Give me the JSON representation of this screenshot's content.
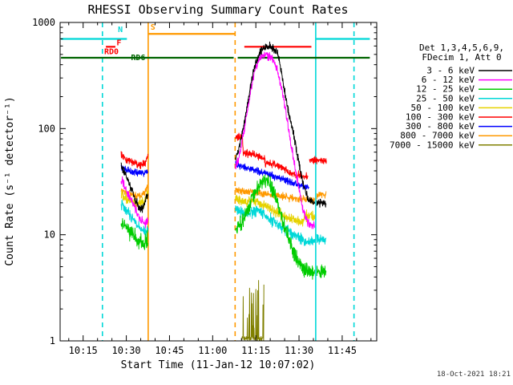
{
  "timestamp": "18-Oct-2021 18:21",
  "chart_data": {
    "type": "line",
    "title": "RHESSI Observing Summary Count Rates",
    "xlabel": "Start Time (11-Jan-12 10:07:02)",
    "ylabel": "Count Rate (s⁻¹ detector⁻¹)",
    "x_unit": "minutes after 10:00",
    "xlim": [
      7,
      117
    ],
    "ylim": [
      1,
      1000
    ],
    "yscale": "log",
    "grid": false,
    "x_ticks": [
      {
        "t": 15,
        "label": "10:15"
      },
      {
        "t": 30,
        "label": "10:30"
      },
      {
        "t": 45,
        "label": "10:45"
      },
      {
        "t": 60,
        "label": "11:00"
      },
      {
        "t": 75,
        "label": "11:15"
      },
      {
        "t": 90,
        "label": "11:30"
      },
      {
        "t": 105,
        "label": "11:45"
      }
    ],
    "y_ticks": [
      {
        "v": 1,
        "label": "1"
      },
      {
        "v": 10,
        "label": "10"
      },
      {
        "v": 100,
        "label": "100"
      },
      {
        "v": 1000,
        "label": "1000"
      }
    ],
    "legend": {
      "header1": "Det 1,3,4,5,6,9,",
      "header2": "FDecim 1, Att 0"
    },
    "series": [
      {
        "id": "3-6-kev",
        "name": "3 - 6 keV",
        "color": "#000000",
        "noise": 0.045,
        "segments": [
          [
            [
              28.2,
              46
            ],
            [
              29,
              40
            ],
            [
              30,
              36
            ],
            [
              31.5,
              28
            ],
            [
              33,
              22
            ],
            [
              34.5,
              18
            ],
            [
              35.5,
              17
            ],
            [
              36.3,
              19
            ],
            [
              37,
              24
            ],
            [
              37.5,
              23
            ]
          ],
          [
            [
              67.9,
              52
            ],
            [
              69,
              62
            ],
            [
              70,
              82
            ],
            [
              71,
              115
            ],
            [
              72,
              165
            ],
            [
              73,
              240
            ],
            [
              74,
              330
            ],
            [
              75,
              420
            ],
            [
              76,
              490
            ],
            [
              77,
              545
            ],
            [
              78,
              580
            ],
            [
              79.5,
              590
            ],
            [
              81,
              570
            ],
            [
              82.5,
              520
            ],
            [
              84,
              330
            ],
            [
              84.6,
              250
            ],
            [
              85.5,
              190
            ],
            [
              86.5,
              140
            ],
            [
              87.5,
              105
            ],
            [
              88.5,
              78
            ],
            [
              89.5,
              55
            ],
            [
              90.5,
              40
            ],
            [
              91.5,
              30
            ],
            [
              92.5,
              24
            ],
            [
              93.5,
              21
            ],
            [
              95.5,
              20
            ]
          ],
          [
            [
              96.2,
              20
            ],
            [
              99.4,
              20
            ]
          ]
        ]
      },
      {
        "id": "6-12-kev",
        "name": "6 - 12 keV",
        "color": "#ff00ff",
        "noise": 0.05,
        "segments": [
          [
            [
              28.2,
              33
            ],
            [
              29.5,
              28
            ],
            [
              31,
              23
            ],
            [
              33,
              18
            ],
            [
              35,
              14
            ],
            [
              36.5,
              13
            ],
            [
              37.5,
              14
            ]
          ],
          [
            [
              67.9,
              42
            ],
            [
              69,
              52
            ],
            [
              70,
              70
            ],
            [
              71,
              100
            ],
            [
              72,
              145
            ],
            [
              73,
              215
            ],
            [
              74,
              300
            ],
            [
              75,
              390
            ],
            [
              76,
              450
            ],
            [
              77,
              490
            ],
            [
              78.5,
              500
            ],
            [
              80,
              470
            ],
            [
              81.5,
              410
            ],
            [
              83,
              310
            ],
            [
              84.5,
              200
            ],
            [
              85.5,
              140
            ],
            [
              86.5,
              95
            ],
            [
              87.5,
              65
            ],
            [
              88.5,
              45
            ],
            [
              89.5,
              32
            ],
            [
              90.5,
              23
            ],
            [
              91.5,
              17
            ],
            [
              92.5,
              14
            ],
            [
              93.5,
              12.5
            ],
            [
              95.5,
              12
            ]
          ]
        ]
      },
      {
        "id": "12-25-kev",
        "name": "12 - 25 keV",
        "color": "#00cc00",
        "noise": 0.085,
        "segments": [
          [
            [
              28.2,
              13
            ],
            [
              30,
              12
            ],
            [
              32,
              10
            ],
            [
              34,
              8.8
            ],
            [
              36,
              8.2
            ],
            [
              37.5,
              9
            ]
          ],
          [
            [
              67.9,
              11
            ],
            [
              70,
              13
            ],
            [
              72,
              17
            ],
            [
              74,
              23
            ],
            [
              76,
              29
            ],
            [
              77.5,
              33
            ],
            [
              79,
              32
            ],
            [
              80.5,
              28
            ],
            [
              82,
              22
            ],
            [
              83.5,
              16
            ],
            [
              85,
              12
            ],
            [
              86.5,
              9
            ],
            [
              88,
              7
            ],
            [
              89.5,
              5.8
            ],
            [
              91,
              5
            ],
            [
              93,
              4.6
            ],
            [
              95.5,
              4.4
            ]
          ],
          [
            [
              96.2,
              4.5
            ],
            [
              99.4,
              4.5
            ]
          ]
        ]
      },
      {
        "id": "25-50-kev",
        "name": "25 - 50 keV",
        "color": "#00d8d8",
        "noise": 0.06,
        "segments": [
          [
            [
              28.2,
              19
            ],
            [
              30,
              17
            ],
            [
              32,
              14.5
            ],
            [
              34,
              12.5
            ],
            [
              36,
              11
            ],
            [
              37.5,
              10.5
            ]
          ],
          [
            [
              67.9,
              17
            ],
            [
              70,
              16.5
            ],
            [
              72,
              16
            ],
            [
              74,
              16.5
            ],
            [
              76,
              17
            ],
            [
              78,
              15.5
            ],
            [
              80,
              14
            ],
            [
              82,
              13
            ],
            [
              84,
              12
            ],
            [
              86,
              11
            ],
            [
              88,
              10
            ],
            [
              90,
              9.3
            ],
            [
              92,
              8.8
            ],
            [
              95.5,
              8.5
            ]
          ],
          [
            [
              96.2,
              9
            ],
            [
              99.4,
              9
            ]
          ]
        ]
      },
      {
        "id": "50-100-kev",
        "name": "50 - 100 keV",
        "color": "#e6d200",
        "noise": 0.055,
        "segments": [
          [
            [
              28.2,
              24
            ],
            [
              30,
              22
            ],
            [
              32,
              20.5
            ],
            [
              34,
              19.5
            ],
            [
              36,
              20
            ],
            [
              37,
              23
            ],
            [
              37.5,
              25
            ]
          ],
          [
            [
              67.9,
              22
            ],
            [
              70,
              21
            ],
            [
              72,
              20.5
            ],
            [
              74,
              21
            ],
            [
              76,
              20
            ],
            [
              78,
              19
            ],
            [
              80,
              17.5
            ],
            [
              82,
              16.5
            ],
            [
              84,
              15.5
            ],
            [
              86,
              14.5
            ],
            [
              88,
              14
            ],
            [
              90,
              13.5
            ],
            [
              91.5,
              13
            ],
            [
              92.5,
              15
            ],
            [
              95.5,
              15
            ]
          ]
        ]
      },
      {
        "id": "100-300-kev",
        "name": "100 - 300 keV",
        "color": "#ff0000",
        "noise": 0.04,
        "segments": [
          [
            [
              28.2,
              57
            ],
            [
              29,
              53
            ],
            [
              31,
              50
            ],
            [
              33,
              47
            ],
            [
              35,
              45
            ],
            [
              36.5,
              46
            ],
            [
              37,
              52
            ],
            [
              37.5,
              58
            ]
          ],
          [
            [
              67.9,
              83
            ],
            [
              70.4,
              82
            ],
            [
              70.6,
              60
            ],
            [
              73,
              58
            ],
            [
              75,
              56
            ],
            [
              77,
              53
            ],
            [
              78.1,
              52
            ],
            [
              78.3,
              48
            ],
            [
              80,
              47
            ],
            [
              82,
              45
            ],
            [
              84,
              43
            ],
            [
              86,
              40
            ],
            [
              88,
              38
            ],
            [
              90,
              36.5
            ],
            [
              91.5,
              35.5
            ],
            [
              93.2,
              35
            ]
          ],
          [
            [
              93.6,
              50
            ],
            [
              99.6,
              50
            ]
          ]
        ]
      },
      {
        "id": "300-800-kev",
        "name": "300 - 800 keV",
        "color": "#0000ff",
        "noise": 0.04,
        "segments": [
          [
            [
              28.2,
              43
            ],
            [
              30,
              41
            ],
            [
              32,
              39.5
            ],
            [
              34,
              38.5
            ],
            [
              36,
              38
            ],
            [
              37.5,
              40
            ]
          ],
          [
            [
              67.9,
              46
            ],
            [
              70,
              44
            ],
            [
              72,
              42.5
            ],
            [
              74,
              41
            ],
            [
              76,
              39.5
            ],
            [
              78,
              38
            ],
            [
              80,
              36.5
            ],
            [
              82,
              35
            ],
            [
              84,
              33.5
            ],
            [
              86,
              32
            ],
            [
              88,
              30.5
            ],
            [
              90,
              29.5
            ],
            [
              92,
              28.5
            ],
            [
              93.5,
              28
            ]
          ]
        ]
      },
      {
        "id": "800-7000-kev",
        "name": "800 - 7000 keV",
        "color": "#ff9900",
        "noise": 0.04,
        "segments": [
          [
            [
              28.2,
              26
            ],
            [
              30,
              25
            ],
            [
              32,
              24
            ],
            [
              34,
              23.5
            ],
            [
              36,
              24
            ],
            [
              37,
              27
            ],
            [
              37.5,
              29
            ]
          ],
          [
            [
              67.9,
              27
            ],
            [
              70,
              26
            ],
            [
              73,
              25.5
            ],
            [
              76,
              25
            ],
            [
              79,
              24
            ],
            [
              82,
              23.5
            ],
            [
              85,
              23
            ],
            [
              88,
              22
            ],
            [
              91,
              21.5
            ],
            [
              95.5,
              21
            ]
          ],
          [
            [
              96.2,
              24
            ],
            [
              99.4,
              24
            ]
          ]
        ]
      },
      {
        "id": "7000-15000-kev",
        "name": "7000 - 15000 keV",
        "color": "#808000",
        "noise": 0.02,
        "spiky": true,
        "segments": [
          [
            [
              70.2,
              1.05
            ],
            [
              77.8,
              1.05
            ]
          ]
        ]
      }
    ],
    "flags": {
      "vlines": [
        {
          "t": 21.7,
          "color": "#00d8d8",
          "dash": true
        },
        {
          "t": 37.6,
          "color": "#ff9900",
          "dash": false
        },
        {
          "t": 67.8,
          "color": "#ff9900",
          "dash": true
        },
        {
          "t": 95.8,
          "color": "#00d8d8",
          "dash": false
        },
        {
          "t": 109.1,
          "color": "#00d8d8",
          "dash": true
        }
      ],
      "hlines": [
        {
          "v": 700,
          "t0": 7.3,
          "t1": 30.2,
          "color": "#00d8d8"
        },
        {
          "v": 700,
          "t0": 95.8,
          "t1": 114.6,
          "color": "#00d8d8"
        },
        {
          "v": 780,
          "t0": 37.6,
          "t1": 67.8,
          "color": "#ff9900"
        },
        {
          "v": 590,
          "t0": 22.9,
          "t1": 26.2,
          "color": "#ff0000"
        },
        {
          "v": 590,
          "t0": 71,
          "t1": 94.3,
          "color": "#ff0000"
        },
        {
          "v": 465,
          "t0": 7.3,
          "t1": 67.3,
          "color": "#006400"
        },
        {
          "v": 465,
          "t0": 68.7,
          "t1": 114.6,
          "color": "#006400"
        }
      ],
      "labels": [
        {
          "t": 27.1,
          "v": 810,
          "text": "N",
          "color": "#00d8d8"
        },
        {
          "t": 26.6,
          "v": 610,
          "text": "F",
          "color": "#ff0000"
        },
        {
          "t": 22.3,
          "v": 505,
          "text": "RD0",
          "color": "#ff0000"
        },
        {
          "t": 31.6,
          "v": 442,
          "text": "RD6",
          "color": "#006400"
        },
        {
          "t": 38.4,
          "v": 855,
          "text": "S",
          "color": "#ff9900"
        }
      ]
    }
  }
}
